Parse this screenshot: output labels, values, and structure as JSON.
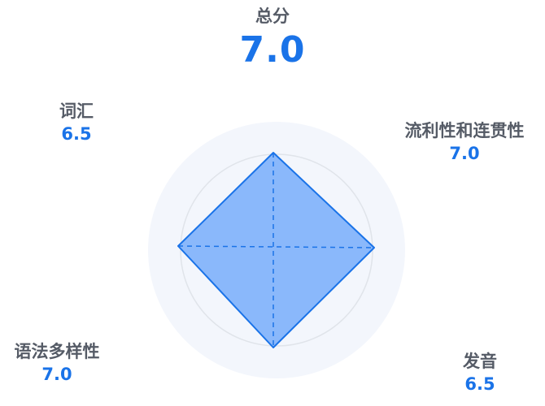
{
  "total": {
    "label": "总分",
    "value": "7.0"
  },
  "dimensions": {
    "vocabulary": {
      "label": "词汇",
      "score": "6.5"
    },
    "fluency": {
      "label": "流利性和连贯性",
      "score": "7.0"
    },
    "grammar": {
      "label": "语法多样性",
      "score": "7.0"
    },
    "pronunciation": {
      "label": "发音",
      "score": "6.5"
    }
  },
  "chart_data": {
    "type": "radar",
    "axes": [
      "流利性和连贯性",
      "发音",
      "语法多样性",
      "词汇"
    ],
    "values": [
      7.0,
      6.5,
      7.0,
      6.5
    ],
    "colors": {
      "fill": "#8ab8fb",
      "stroke": "#1a73e8",
      "background": "#f3f6fc",
      "ring": "#e0e4ea"
    }
  }
}
